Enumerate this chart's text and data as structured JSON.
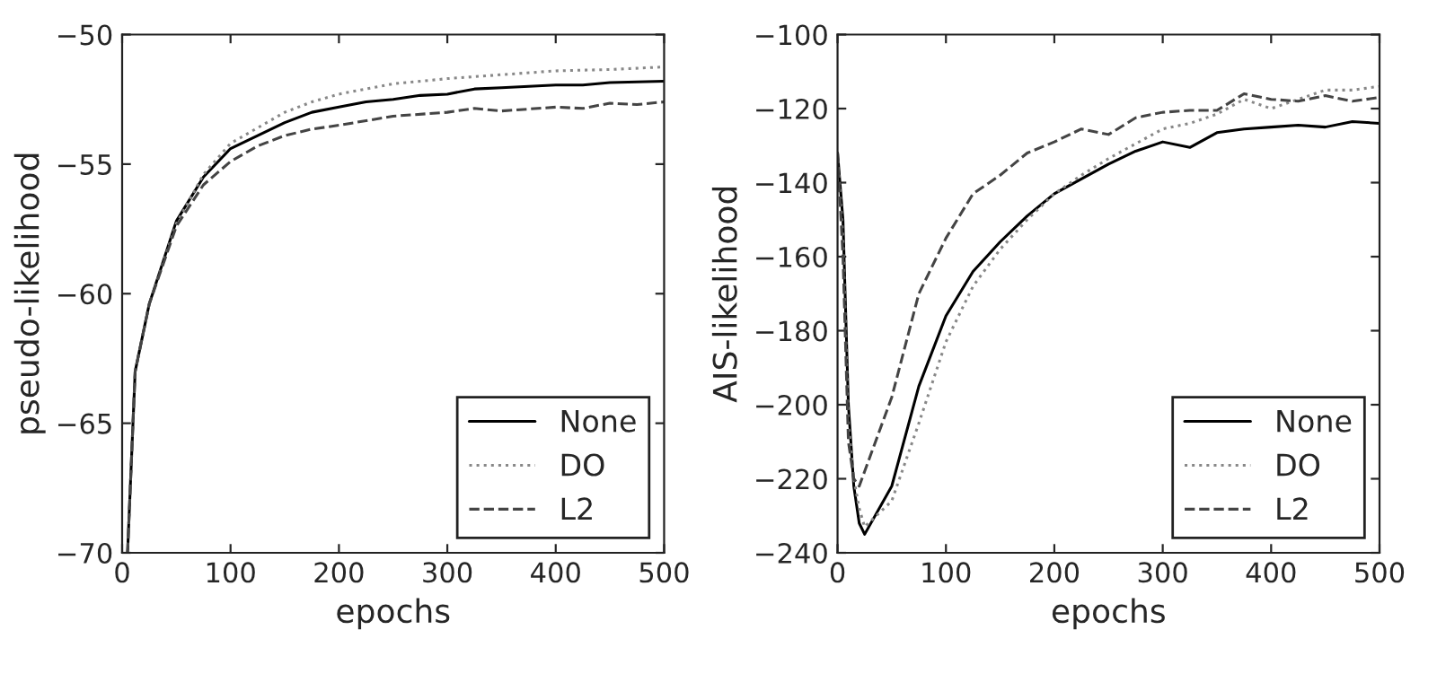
{
  "chart_data": [
    {
      "type": "line",
      "xlabel": "epochs",
      "ylabel": "pseudo-likelihood",
      "xlim": [
        0,
        500
      ],
      "xticks": [
        0,
        100,
        200,
        300,
        400,
        500
      ],
      "ylim": [
        -70,
        -50
      ],
      "yticks": [
        {
          "value": -70,
          "label": "−70"
        },
        {
          "value": -65,
          "label": "−65"
        },
        {
          "value": -60,
          "label": "−60"
        },
        {
          "value": -55,
          "label": "−55"
        },
        {
          "value": -50,
          "label": "−50"
        }
      ],
      "grid": false,
      "legend": "bottom right",
      "series": [
        {
          "name": "None",
          "color": "#000000",
          "line_style": "solid",
          "x": [
            5,
            12,
            25,
            50,
            75,
            100,
            125,
            150,
            175,
            200,
            225,
            250,
            275,
            300,
            325,
            350,
            400,
            425,
            450,
            500
          ],
          "values": [
            -70,
            -63,
            -60.4,
            -57.2,
            -55.5,
            -54.4,
            -53.9,
            -53.4,
            -53,
            -52.8,
            -52.6,
            -52.5,
            -52.35,
            -52.3,
            -52.1,
            -52.05,
            -51.95,
            -51.95,
            -51.85,
            -51.8
          ]
        },
        {
          "name": "DO",
          "color": "#888888",
          "line_style": "dotted",
          "x": [
            5,
            12,
            25,
            50,
            75,
            100,
            125,
            150,
            175,
            200,
            250,
            300,
            350,
            400,
            450,
            500
          ],
          "values": [
            -70,
            -63,
            -60.4,
            -57.3,
            -55.4,
            -54.2,
            -53.6,
            -53.0,
            -52.6,
            -52.3,
            -51.9,
            -51.7,
            -51.55,
            -51.4,
            -51.35,
            -51.25
          ]
        },
        {
          "name": "L2",
          "color": "#444444",
          "line_style": "dashed",
          "x": [
            5,
            12,
            25,
            50,
            75,
            100,
            125,
            150,
            175,
            200,
            250,
            300,
            325,
            350,
            400,
            425,
            450,
            475,
            500
          ],
          "values": [
            -70,
            -63,
            -60.4,
            -57.4,
            -55.8,
            -54.9,
            -54.3,
            -53.9,
            -53.65,
            -53.5,
            -53.15,
            -53.0,
            -52.85,
            -52.95,
            -52.8,
            -52.85,
            -52.65,
            -52.7,
            -52.6
          ]
        }
      ]
    },
    {
      "type": "line",
      "xlabel": "epochs",
      "ylabel": "AIS-likelihood",
      "xlim": [
        0,
        500
      ],
      "xticks": [
        0,
        100,
        200,
        300,
        400,
        500
      ],
      "ylim": [
        -240,
        -100
      ],
      "yticks": [
        {
          "value": -240,
          "label": "−240"
        },
        {
          "value": -220,
          "label": "−220"
        },
        {
          "value": -200,
          "label": "−200"
        },
        {
          "value": -180,
          "label": "−180"
        },
        {
          "value": -160,
          "label": "−160"
        },
        {
          "value": -140,
          "label": "−140"
        },
        {
          "value": -120,
          "label": "−120"
        },
        {
          "value": -100,
          "label": "−100"
        }
      ],
      "grid": false,
      "legend": "bottom right",
      "series": [
        {
          "name": "None",
          "color": "#000000",
          "line_style": "solid",
          "x": [
            0,
            5,
            10,
            15,
            20,
            25,
            50,
            75,
            100,
            125,
            150,
            175,
            200,
            225,
            250,
            275,
            300,
            325,
            350,
            375,
            400,
            425,
            450,
            475,
            500
          ],
          "values": [
            -132,
            -150,
            -200,
            -222,
            -232,
            -235,
            -222,
            -195,
            -176,
            -164,
            -156,
            -149,
            -143,
            -139,
            -135,
            -131.5,
            -129,
            -130.5,
            -126.5,
            -125.5,
            -125,
            -124.5,
            -125,
            -123.5,
            -124
          ]
        },
        {
          "name": "DO",
          "color": "#888888",
          "line_style": "dotted",
          "x": [
            0,
            5,
            10,
            15,
            20,
            25,
            50,
            75,
            100,
            125,
            150,
            175,
            200,
            225,
            250,
            275,
            300,
            325,
            350,
            375,
            400,
            425,
            450,
            475,
            500
          ],
          "values": [
            -132,
            -155,
            -205,
            -220,
            -228,
            -233,
            -226,
            -205,
            -183,
            -168,
            -158,
            -150,
            -143,
            -138,
            -133.5,
            -129.5,
            -125.5,
            -124,
            -121.5,
            -117.5,
            -120,
            -117.5,
            -115,
            -115,
            -114
          ]
        },
        {
          "name": "L2",
          "color": "#444444",
          "line_style": "dashed",
          "x": [
            0,
            5,
            10,
            15,
            20,
            25,
            50,
            75,
            100,
            125,
            150,
            175,
            200,
            225,
            250,
            275,
            300,
            325,
            350,
            375,
            400,
            425,
            450,
            475,
            500
          ],
          "values": [
            -132,
            -160,
            -210,
            -220,
            -222,
            -218,
            -198,
            -170,
            -155,
            -143,
            -138,
            -132,
            -129,
            -125.5,
            -127,
            -122.5,
            -121,
            -120.5,
            -120.5,
            -116,
            -117.5,
            -118,
            -116.5,
            -118,
            -117
          ]
        }
      ]
    }
  ]
}
